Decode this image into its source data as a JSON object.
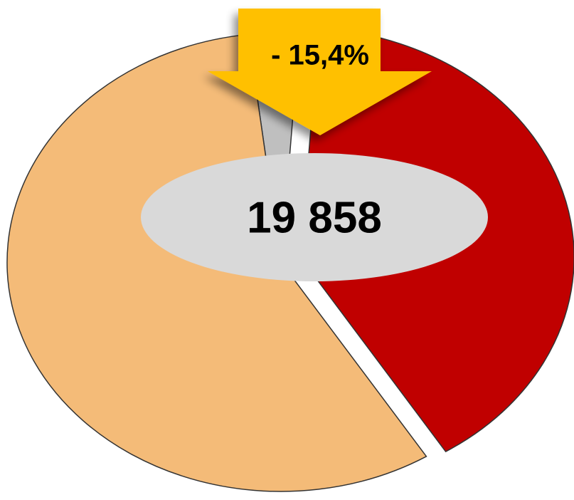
{
  "chart_data": {
    "type": "pie",
    "values": [
      3,
      40,
      57
    ],
    "colors": [
      "#bfbfbf",
      "#c00000",
      "#f4bb78"
    ],
    "annotations": [
      "- 15,4%",
      "19 858"
    ]
  }
}
